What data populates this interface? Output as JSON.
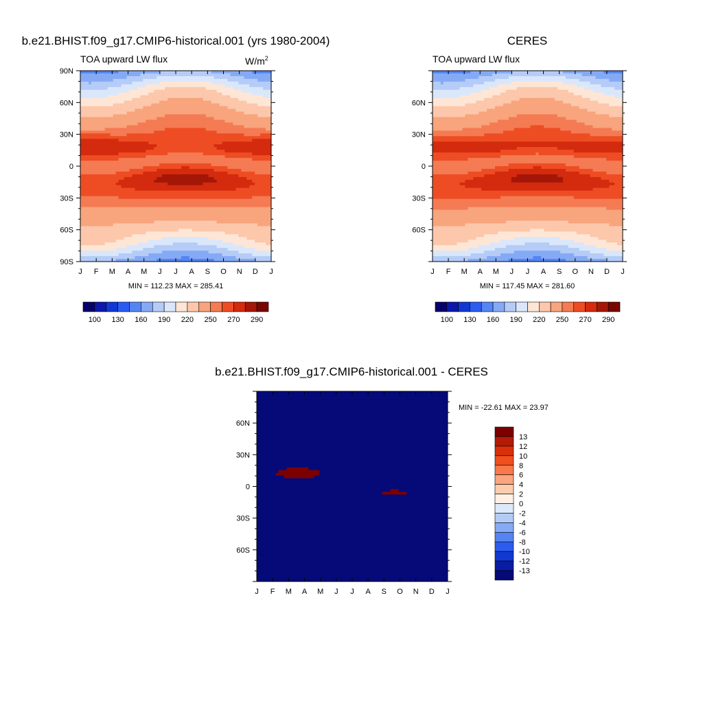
{
  "chart_data": [
    {
      "type": "heatmap",
      "title": "b.e21.BHIST.f09_g17.CMIP6-historical.001 (yrs 1980-2004)",
      "subtitle": "TOA upward LW flux",
      "units": "W/m",
      "units_sup": "2",
      "x": [
        "J",
        "F",
        "M",
        "A",
        "M",
        "J",
        "J",
        "A",
        "S",
        "O",
        "N",
        "D",
        "J"
      ],
      "y_ticks": [
        "90N",
        "60N",
        "30N",
        "0",
        "30S",
        "60S",
        "90S"
      ],
      "ylim": [
        -90,
        90
      ],
      "stats": "MIN = 112.23 MAX = 285.41",
      "min": 112.23,
      "max": 285.41,
      "colorbar_labels": [
        "100",
        "130",
        "160",
        "190",
        "220",
        "250",
        "270",
        "290"
      ],
      "colorbar_colors": [
        "#08006b",
        "#0c18a8",
        "#1238d4",
        "#2b5cf2",
        "#5585f4",
        "#85aaf5",
        "#b4ccf7",
        "#dae7fb",
        "#fee6d6",
        "#fcc7aa",
        "#f8a47d",
        "#f47b53",
        "#ee4d24",
        "#d42b0e",
        "#a41708",
        "#780600"
      ]
    },
    {
      "type": "heatmap",
      "title": "CERES",
      "subtitle": "TOA upward LW flux",
      "x": [
        "J",
        "F",
        "M",
        "A",
        "M",
        "J",
        "J",
        "A",
        "S",
        "O",
        "N",
        "D",
        "J"
      ],
      "y_ticks": [
        "60N",
        "30N",
        "0",
        "30S",
        "60S"
      ],
      "ylim": [
        -90,
        90
      ],
      "stats": "MIN = 117.45 MAX = 281.60",
      "min": 117.45,
      "max": 281.6,
      "colorbar_labels": [
        "100",
        "130",
        "160",
        "190",
        "220",
        "250",
        "270",
        "290"
      ],
      "colorbar_colors": [
        "#08006b",
        "#0c18a8",
        "#1238d4",
        "#2b5cf2",
        "#5585f4",
        "#85aaf5",
        "#b4ccf7",
        "#dae7fb",
        "#fee6d6",
        "#fcc7aa",
        "#f8a47d",
        "#f47b53",
        "#ee4d24",
        "#d42b0e",
        "#a41708",
        "#780600"
      ]
    },
    {
      "type": "heatmap",
      "title": "b.e21.BHIST.f09_g17.CMIP6-historical.001 - CERES",
      "x": [
        "J",
        "F",
        "M",
        "A",
        "M",
        "J",
        "J",
        "A",
        "S",
        "O",
        "N",
        "D",
        "J"
      ],
      "y_ticks": [
        "60N",
        "30N",
        "0",
        "30S",
        "60S"
      ],
      "ylim": [
        -90,
        90
      ],
      "stats": "MIN = -22.61 MAX =  23.97",
      "min": -22.61,
      "max": 23.97,
      "colorbar_labels": [
        "13",
        "12",
        "10",
        "8",
        "6",
        "4",
        "2",
        "0",
        "-2",
        "-4",
        "-6",
        "-8",
        "-10",
        "-12",
        "-13"
      ],
      "colorbar_colors": [
        "#7d0000",
        "#b31b07",
        "#d9300c",
        "#f04f1e",
        "#f7794c",
        "#fba47e",
        "#fdccad",
        "#fff0e4",
        "#dde9fa",
        "#b3ccf6",
        "#86abf4",
        "#5584f2",
        "#2c5cef",
        "#1238d2",
        "#0a1ca4",
        "#050a78"
      ]
    }
  ]
}
